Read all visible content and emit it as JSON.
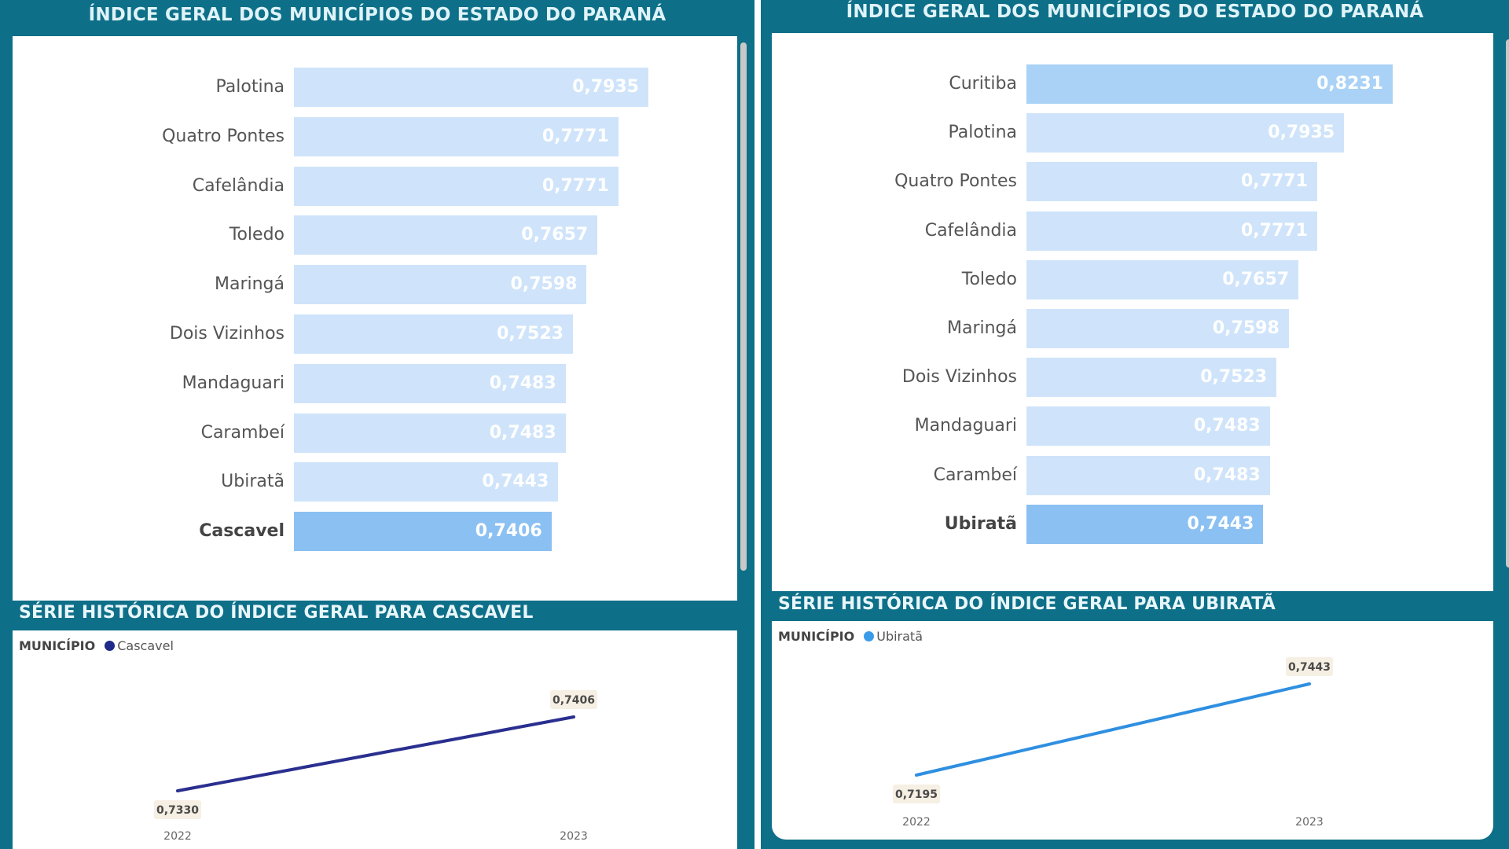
{
  "left": {
    "title": "ÍNDICE GERAL DOS MUNICÍPIOS DO ESTADO DO PARANÁ",
    "section_title": "SÉRIE HISTÓRICA DO ÍNDICE GERAL PARA CASCAVEL",
    "legend_title": "MUNICÍPIO",
    "legend_item": "Cascavel",
    "line_color": "#2a2f8f",
    "legend_color": "#1f2a8a"
  },
  "right": {
    "title": "ÍNDICE GERAL DOS MUNICÍPIOS DO ESTADO DO PARANÁ",
    "section_title": "SÉRIE HISTÓRICA DO ÍNDICE GERAL PARA UBIRATÃ",
    "legend_title": "MUNICÍPIO",
    "legend_item": "Ubiratã",
    "line_color": "#2f8fe0",
    "legend_color": "#3a9be8"
  },
  "chart_data": [
    {
      "type": "bar",
      "orientation": "horizontal",
      "title": "ÍNDICE GERAL DOS MUNICÍPIOS DO ESTADO DO PARANÁ",
      "categories": [
        "Palotina",
        "Quatro Pontes",
        "Cafelândia",
        "Toledo",
        "Maringá",
        "Dois Vizinhos",
        "Mandaguari",
        "Carambeí",
        "Ubiratã",
        "Cascavel"
      ],
      "values": [
        0.7935,
        0.7771,
        0.7771,
        0.7657,
        0.7598,
        0.7523,
        0.7483,
        0.7483,
        0.7443,
        0.7406
      ],
      "labels": [
        "0,7935",
        "0,7771",
        "0,7771",
        "0,7657",
        "0,7598",
        "0,7523",
        "0,7483",
        "0,7483",
        "0,7443",
        "0,7406"
      ],
      "highlight": "Cascavel",
      "colors": {
        "bar": "#cfe4fa",
        "highlight": "#8bc0f2"
      }
    },
    {
      "type": "line",
      "title": "SÉRIE HISTÓRICA DO ÍNDICE GERAL PARA CASCAVEL",
      "legend_title": "MUNICÍPIO",
      "x": [
        "2022",
        "2023"
      ],
      "series": [
        {
          "name": "Cascavel",
          "values": [
            0.733,
            0.7406
          ],
          "labels": [
            "0,7330",
            "0,7406"
          ]
        }
      ]
    },
    {
      "type": "bar",
      "orientation": "horizontal",
      "title": "ÍNDICE GERAL DOS MUNICÍPIOS DO ESTADO DO PARANÁ",
      "categories": [
        "Curitiba",
        "Palotina",
        "Quatro Pontes",
        "Cafelândia",
        "Toledo",
        "Maringá",
        "Dois Vizinhos",
        "Mandaguari",
        "Carambeí",
        "Ubiratã"
      ],
      "values": [
        0.8231,
        0.7935,
        0.7771,
        0.7771,
        0.7657,
        0.7598,
        0.7523,
        0.7483,
        0.7483,
        0.7443
      ],
      "labels": [
        "0,8231",
        "0,7935",
        "0,7771",
        "0,7771",
        "0,7657",
        "0,7598",
        "0,7523",
        "0,7483",
        "0,7483",
        "0,7443"
      ],
      "highlight_index": 9,
      "colors": {
        "bar": "#cfe4fa",
        "highlight": "#8bc0f2",
        "first": "#a9d2f6"
      }
    },
    {
      "type": "line",
      "title": "SÉRIE HISTÓRICA DO ÍNDICE GERAL PARA UBIRATÃ",
      "legend_title": "MUNICÍPIO",
      "x": [
        "2022",
        "2023"
      ],
      "series": [
        {
          "name": "Ubiratã",
          "values": [
            0.7195,
            0.7443
          ],
          "labels": [
            "0,7195",
            "0,7443"
          ]
        }
      ]
    }
  ]
}
